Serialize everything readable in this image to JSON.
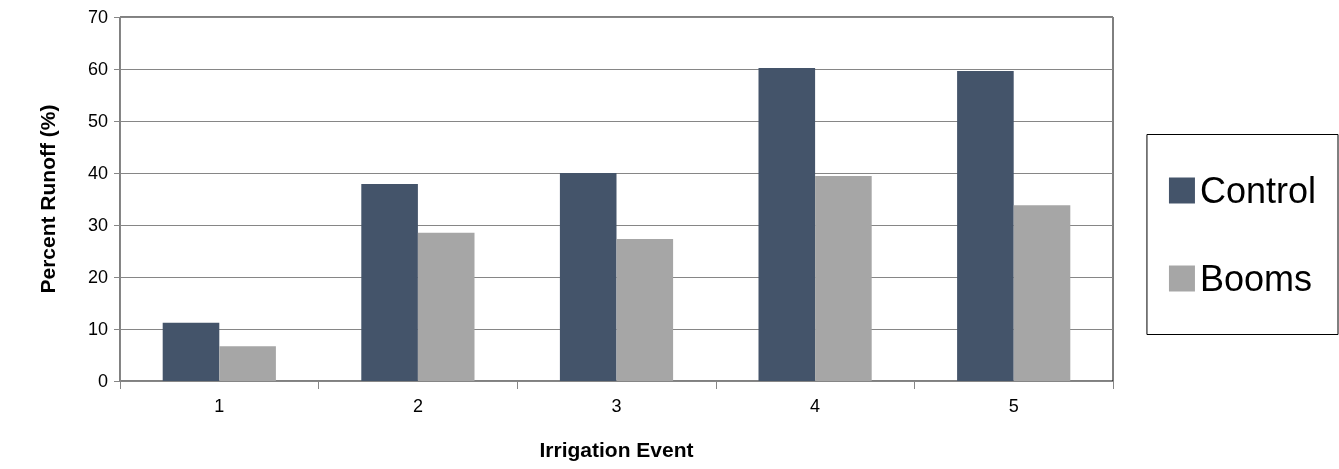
{
  "chart_data": {
    "type": "bar",
    "xlabel": "Irrigation Event",
    "ylabel": "Percent Runoff (%)",
    "categories": [
      "1",
      "2",
      "3",
      "4",
      "5"
    ],
    "series": [
      {
        "name": "Control",
        "color": "#44546a",
        "values": [
          11.2,
          37.9,
          40,
          60.2,
          59.6
        ]
      },
      {
        "name": "Booms",
        "color": "#a6a6a6",
        "values": [
          6.7,
          28.5,
          27.3,
          39.4,
          33.8
        ]
      }
    ],
    "ylim": [
      0,
      70
    ],
    "yticks": [
      0,
      10,
      20,
      30,
      40,
      50,
      60,
      70
    ],
    "grid": "y",
    "legend": "right"
  }
}
